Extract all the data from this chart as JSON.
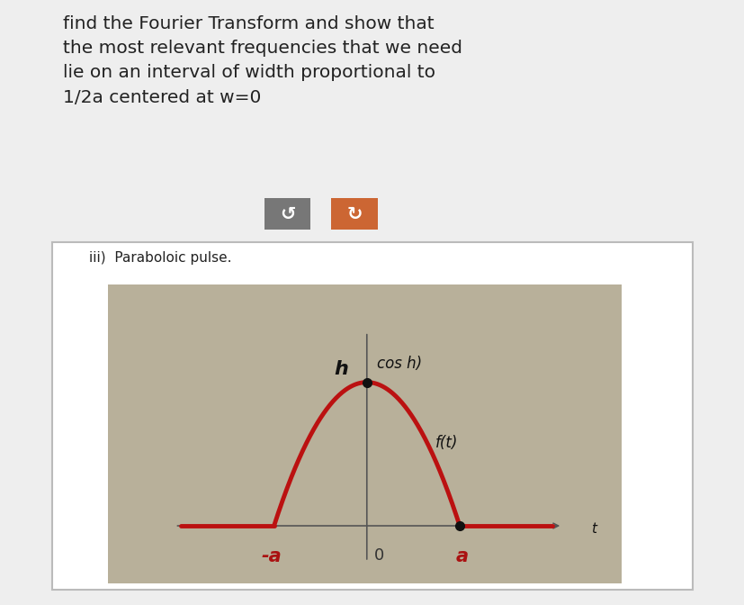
{
  "title_text": "find the Fourier Transform and show that\nthe most relevant frequencies that we need\nlie on an interval of width proportional to\n1/2a centered at w=0",
  "title_fontsize": 14.5,
  "title_color": "#222222",
  "bg_color": "#eeeeee",
  "subtitle_text": "iii)  Paraboloic pulse.",
  "subtitle_fontsize": 11,
  "curve_color": "#bb1111",
  "curve_linewidth": 3.5,
  "axis_color": "#555555",
  "axis_linewidth": 1.2,
  "label_h": "h",
  "label_con": "cos h)",
  "label_ft": "f(t)",
  "label_t": "t",
  "label_neg_a": "-a",
  "label_o": "0",
  "label_a": "a",
  "btn1_color": "#777777",
  "btn2_color": "#cc6633",
  "photo_bg": "#b8b09a",
  "paper_bg": "#d8d4c8",
  "outer_bg": "white",
  "border_color": "#bbbbbb"
}
